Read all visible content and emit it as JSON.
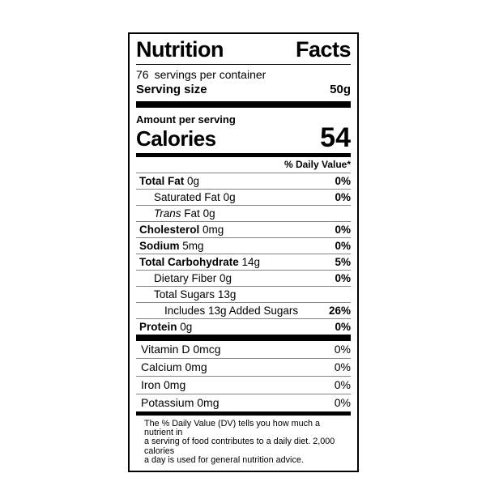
{
  "title": {
    "word1": "Nutrition",
    "word2": "Facts"
  },
  "header": {
    "servings_count": "76",
    "servings_label": "servings per container",
    "serving_size_label": "Serving size",
    "serving_size_value": "50g"
  },
  "calories": {
    "amount_per_serving_label": "Amount per serving",
    "label": "Calories",
    "value": "54"
  },
  "daily_value_header": "% Daily Value*",
  "nutrients": [
    {
      "name": "Total Fat",
      "amount": "0g",
      "dv": "0%"
    },
    {
      "name": "Saturated Fat",
      "amount": "0g",
      "dv": "0%"
    },
    {
      "name_italic": "Trans",
      "name_rest": "Fat",
      "amount": "0g",
      "dv": ""
    },
    {
      "name": "Cholesterol",
      "amount": "0mg",
      "dv": "0%"
    },
    {
      "name": "Sodium",
      "amount": "5mg",
      "dv": "0%"
    },
    {
      "name": "Total Carbohydrate",
      "amount": "14g",
      "dv": "5%"
    },
    {
      "name": "Dietary Fiber",
      "amount": "0g",
      "dv": "0%"
    },
    {
      "name": "Total Sugars",
      "amount": "13g",
      "dv": ""
    },
    {
      "name": "Includes 13g Added Sugars",
      "amount": "",
      "dv": "26%"
    },
    {
      "name": "Protein",
      "amount": "0g",
      "dv": "0%"
    }
  ],
  "vitamins": [
    {
      "name": "Vitamin D",
      "amount": "0mcg",
      "dv": "0%"
    },
    {
      "name": "Calcium",
      "amount": "0mg",
      "dv": "0%"
    },
    {
      "name": "Iron",
      "amount": "0mg",
      "dv": "0%"
    },
    {
      "name": "Potassium",
      "amount": "0mg",
      "dv": "0%"
    }
  ],
  "footnote": {
    "line1": "The % Daily Value (DV) tells you how much a nutrient in",
    "line2": "a serving of food contributes to a daily diet. 2,000 calories",
    "line3": "a day is used for general nutrition advice."
  }
}
